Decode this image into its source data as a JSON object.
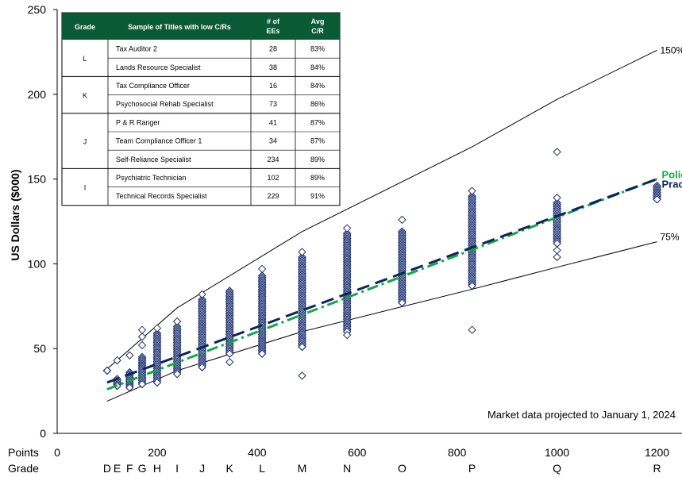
{
  "chart_data": {
    "type": "scatter",
    "ylabel": "US Dollars ($000)",
    "ylim": [
      0,
      250
    ],
    "xlim": [
      0,
      1250
    ],
    "yticks": [
      0,
      50,
      100,
      150,
      200,
      250
    ],
    "xticks": [
      0,
      200,
      400,
      600,
      800,
      1000,
      1200
    ],
    "x_row_label": "Points",
    "grade_row_label": "Grade",
    "grades": [
      {
        "label": "D",
        "x": 100
      },
      {
        "label": "E",
        "x": 120
      },
      {
        "label": "F",
        "x": 145
      },
      {
        "label": "G",
        "x": 170
      },
      {
        "label": "H",
        "x": 200
      },
      {
        "label": "I",
        "x": 240
      },
      {
        "label": "J",
        "x": 290
      },
      {
        "label": "K",
        "x": 345
      },
      {
        "label": "L",
        "x": 410
      },
      {
        "label": "M",
        "x": 490
      },
      {
        "label": "N",
        "x": 580
      },
      {
        "label": "O",
        "x": 690
      },
      {
        "label": "P",
        "x": 830
      },
      {
        "label": "Q",
        "x": 1000
      },
      {
        "label": "R",
        "x": 1200
      }
    ],
    "band_150": {
      "label": "150%",
      "points": [
        [
          100,
          38
        ],
        [
          240,
          74
        ],
        [
          490,
          119
        ],
        [
          830,
          169
        ],
        [
          1000,
          197
        ],
        [
          1200,
          226
        ]
      ]
    },
    "band_75": {
      "label": "75%",
      "points": [
        [
          100,
          19
        ],
        [
          240,
          37
        ],
        [
          490,
          60
        ],
        [
          830,
          85
        ],
        [
          1000,
          98
        ],
        [
          1200,
          113
        ]
      ]
    },
    "policy": {
      "name": "Policy",
      "color": "#1aa34a",
      "points": [
        [
          100,
          26
        ],
        [
          1200,
          150
        ]
      ]
    },
    "practice": {
      "name": "Practice",
      "color": "#0d2557",
      "points": [
        [
          100,
          30
        ],
        [
          1200,
          150
        ]
      ]
    },
    "grade_points": [
      {
        "x": 100,
        "lo": 37,
        "hi": 37,
        "extra": []
      },
      {
        "x": 120,
        "lo": 28,
        "hi": 32,
        "extra": [
          43
        ]
      },
      {
        "x": 145,
        "lo": 27,
        "hi": 36,
        "extra": [
          46
        ]
      },
      {
        "x": 170,
        "lo": 29,
        "hi": 45,
        "extra": [
          52,
          57,
          61
        ]
      },
      {
        "x": 200,
        "lo": 30,
        "hi": 59,
        "extra": [
          62
        ]
      },
      {
        "x": 240,
        "lo": 35,
        "hi": 63,
        "extra": [
          66
        ]
      },
      {
        "x": 290,
        "lo": 39,
        "hi": 79,
        "extra": [
          82
        ]
      },
      {
        "x": 345,
        "lo": 47,
        "hi": 84,
        "extra": [
          42
        ]
      },
      {
        "x": 410,
        "lo": 47,
        "hi": 93,
        "extra": [
          97
        ]
      },
      {
        "x": 490,
        "lo": 51,
        "hi": 104,
        "extra": [
          107,
          34
        ]
      },
      {
        "x": 580,
        "lo": 60,
        "hi": 118,
        "extra": [
          121,
          58
        ]
      },
      {
        "x": 690,
        "lo": 77,
        "hi": 119,
        "extra": [
          126
        ]
      },
      {
        "x": 830,
        "lo": 87,
        "hi": 140,
        "extra": [
          143,
          61
        ]
      },
      {
        "x": 1000,
        "lo": 112,
        "hi": 136,
        "extra": [
          166,
          104,
          108,
          139
        ]
      },
      {
        "x": 1200,
        "lo": 138,
        "hi": 146,
        "extra": []
      }
    ],
    "annotation": "Market data projected to January 1, 2024"
  },
  "table": {
    "headers": [
      "Grade",
      "Sample of Titles with low C/Rs",
      "# of EEs",
      "Avg C/R"
    ],
    "groups": [
      {
        "grade": "L",
        "rows": [
          {
            "title": "Tax Auditor 2",
            "ees": "28",
            "cr": "83%"
          },
          {
            "title": "Lands Resource Specialist",
            "ees": "38",
            "cr": "84%"
          }
        ]
      },
      {
        "grade": "K",
        "rows": [
          {
            "title": "Tax Compliance Officer",
            "ees": "16",
            "cr": "84%"
          },
          {
            "title": "Psychosocial Rehab Specialist",
            "ees": "73",
            "cr": "86%"
          }
        ]
      },
      {
        "grade": "J",
        "rows": [
          {
            "title": "P & R Ranger",
            "ees": "41",
            "cr": "87%"
          },
          {
            "title": "Team Compliance Officer 1",
            "ees": "34",
            "cr": "87%"
          },
          {
            "title": "Self-Reliance Specialist",
            "ees": "234",
            "cr": "89%"
          }
        ]
      },
      {
        "grade": "I",
        "rows": [
          {
            "title": "Psychiatric Technician",
            "ees": "102",
            "cr": "89%"
          },
          {
            "title": "Technical Records Specialist",
            "ees": "229",
            "cr": "91%"
          }
        ]
      }
    ]
  },
  "colors": {
    "marker": "#14296b",
    "table_header": "#0b5a36",
    "policy": "#1aa34a",
    "practice": "#0d2557"
  }
}
